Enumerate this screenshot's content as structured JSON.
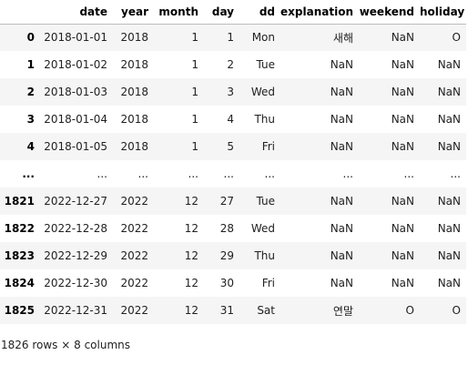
{
  "table": {
    "columns": [
      "date",
      "year",
      "month",
      "day",
      "dd",
      "explanation",
      "weekend",
      "holiday"
    ],
    "rows": [
      {
        "index": "0",
        "cells": [
          "2018-01-01",
          "2018",
          "1",
          "1",
          "Mon",
          "새해",
          "NaN",
          "O"
        ]
      },
      {
        "index": "1",
        "cells": [
          "2018-01-02",
          "2018",
          "1",
          "2",
          "Tue",
          "NaN",
          "NaN",
          "NaN"
        ]
      },
      {
        "index": "2",
        "cells": [
          "2018-01-03",
          "2018",
          "1",
          "3",
          "Wed",
          "NaN",
          "NaN",
          "NaN"
        ]
      },
      {
        "index": "3",
        "cells": [
          "2018-01-04",
          "2018",
          "1",
          "4",
          "Thu",
          "NaN",
          "NaN",
          "NaN"
        ]
      },
      {
        "index": "4",
        "cells": [
          "2018-01-05",
          "2018",
          "1",
          "5",
          "Fri",
          "NaN",
          "NaN",
          "NaN"
        ]
      },
      {
        "index": "...",
        "cells": [
          "...",
          "...",
          "...",
          "...",
          "...",
          "...",
          "...",
          "..."
        ]
      },
      {
        "index": "1821",
        "cells": [
          "2022-12-27",
          "2022",
          "12",
          "27",
          "Tue",
          "NaN",
          "NaN",
          "NaN"
        ]
      },
      {
        "index": "1822",
        "cells": [
          "2022-12-28",
          "2022",
          "12",
          "28",
          "Wed",
          "NaN",
          "NaN",
          "NaN"
        ]
      },
      {
        "index": "1823",
        "cells": [
          "2022-12-29",
          "2022",
          "12",
          "29",
          "Thu",
          "NaN",
          "NaN",
          "NaN"
        ]
      },
      {
        "index": "1824",
        "cells": [
          "2022-12-30",
          "2022",
          "12",
          "30",
          "Fri",
          "NaN",
          "NaN",
          "NaN"
        ]
      },
      {
        "index": "1825",
        "cells": [
          "2022-12-31",
          "2022",
          "12",
          "31",
          "Sat",
          "연말",
          "O",
          "O"
        ]
      }
    ]
  },
  "caption": "1826 rows × 8 columns"
}
